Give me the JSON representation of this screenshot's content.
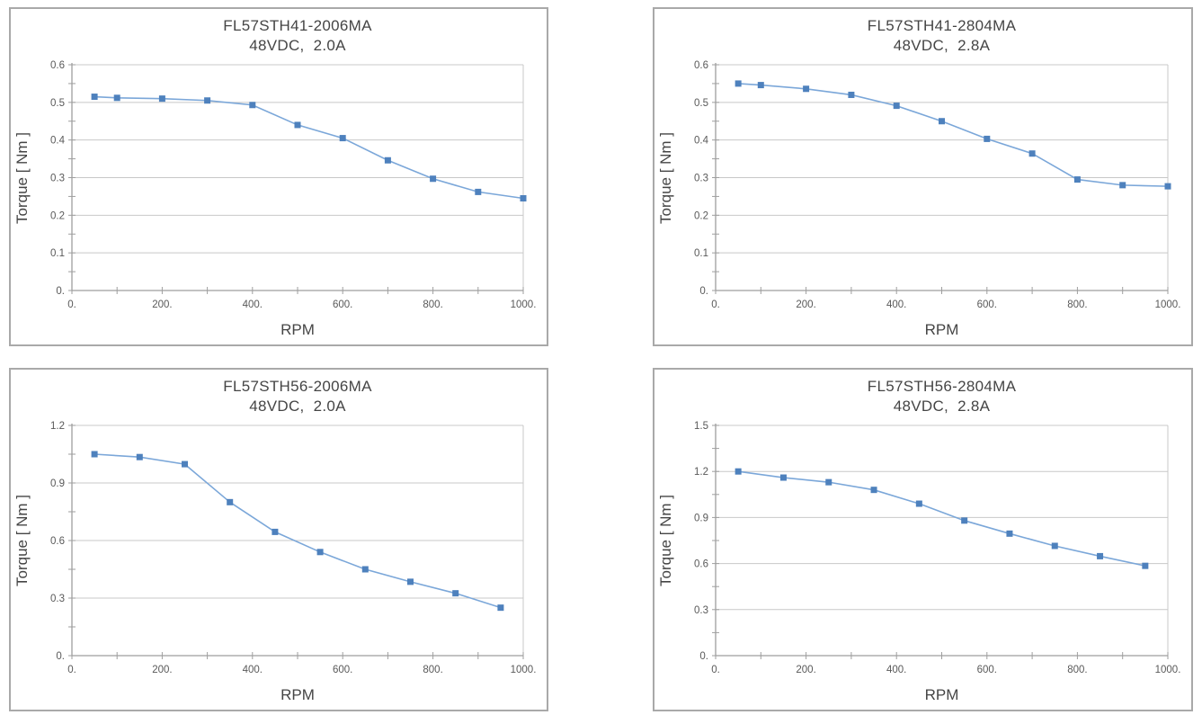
{
  "page": {
    "background": "#ffffff",
    "panel_border_color": "#a9a9a9"
  },
  "chart_defaults": {
    "marker_shape": "square",
    "marker_color": "#4e81bd",
    "line_color": "#7ba7d9",
    "grid_color": "#c8c8c8",
    "axis_color": "#9e9e9e",
    "title_text_color": "#454545",
    "tick_text_color": "#595959"
  },
  "chart_data": [
    {
      "type": "line",
      "title": "FL57STH41-2006MA",
      "subtitle": "48VDC,  2.0A",
      "xlabel": "RPM",
      "ylabel": "Torque [ Nm ]",
      "x": [
        50,
        100,
        200,
        300,
        400,
        500,
        600,
        700,
        800,
        900,
        1000
      ],
      "y": [
        0.515,
        0.512,
        0.51,
        0.505,
        0.493,
        0.44,
        0.405,
        0.346,
        0.297,
        0.262,
        0.245
      ],
      "xlim": [
        0,
        1000
      ],
      "ylim": [
        0,
        0.6
      ],
      "x_major": 200,
      "x_minor": 100,
      "y_major": 0.1,
      "y_minor": 0.05,
      "x_tick_labels": [
        "0.",
        "200.",
        "400.",
        "600.",
        "800.",
        "1000."
      ],
      "y_tick_labels": [
        "0.",
        "0.1",
        "0.2",
        "0.3",
        "0.4",
        "0.5",
        "0.6"
      ],
      "grid": "horizontal-major",
      "legend": "none"
    },
    {
      "type": "line",
      "title": "FL57STH41-2804MA",
      "subtitle": "48VDC,  2.8A",
      "xlabel": "RPM",
      "ylabel": "Torque [ Nm ]",
      "x": [
        50,
        100,
        200,
        300,
        400,
        500,
        600,
        700,
        800,
        900,
        1000
      ],
      "y": [
        0.55,
        0.546,
        0.536,
        0.52,
        0.491,
        0.45,
        0.403,
        0.364,
        0.295,
        0.28,
        0.277
      ],
      "xlim": [
        0,
        1000
      ],
      "ylim": [
        0,
        0.6
      ],
      "x_major": 200,
      "x_minor": 100,
      "y_major": 0.1,
      "y_minor": 0.05,
      "x_tick_labels": [
        "0.",
        "200.",
        "400.",
        "600.",
        "800.",
        "1000."
      ],
      "y_tick_labels": [
        "0.",
        "0.1",
        "0.2",
        "0.3",
        "0.4",
        "0.5",
        "0.6"
      ],
      "grid": "horizontal-major",
      "legend": "none"
    },
    {
      "type": "line",
      "title": "FL57STH56-2006MA",
      "subtitle": "48VDC,  2.0A",
      "xlabel": "RPM",
      "ylabel": "Torque [ Nm ]",
      "x": [
        50,
        150,
        250,
        350,
        450,
        550,
        650,
        750,
        850,
        950
      ],
      "y": [
        1.05,
        1.035,
        0.998,
        0.8,
        0.645,
        0.54,
        0.45,
        0.385,
        0.325,
        0.25
      ],
      "xlim": [
        0,
        1000
      ],
      "ylim": [
        0,
        1.2
      ],
      "x_major": 200,
      "x_minor": 100,
      "y_major": 0.3,
      "y_minor": 0.15,
      "x_tick_labels": [
        "0.",
        "200.",
        "400.",
        "600.",
        "800.",
        "1000."
      ],
      "y_tick_labels": [
        "0.",
        "0.3",
        "0.6",
        "0.9",
        "1.2"
      ],
      "grid": "horizontal-major",
      "legend": "none"
    },
    {
      "type": "line",
      "title": "FL57STH56-2804MA",
      "subtitle": "48VDC,  2.8A",
      "xlabel": "RPM",
      "ylabel": "Torque [ Nm ]",
      "x": [
        50,
        150,
        250,
        350,
        450,
        550,
        650,
        750,
        850,
        950
      ],
      "y": [
        1.2,
        1.16,
        1.13,
        1.08,
        0.99,
        0.88,
        0.795,
        0.715,
        0.648,
        0.585
      ],
      "xlim": [
        0,
        1000
      ],
      "ylim": [
        0,
        1.5
      ],
      "x_major": 200,
      "x_minor": 100,
      "y_major": 0.3,
      "y_minor": 0.15,
      "x_tick_labels": [
        "0.",
        "200.",
        "400.",
        "600.",
        "800.",
        "1000."
      ],
      "y_tick_labels": [
        "0.",
        "0.3",
        "0.6",
        "0.9",
        "1.2",
        "1.5"
      ],
      "grid": "horizontal-major",
      "legend": "none"
    }
  ]
}
